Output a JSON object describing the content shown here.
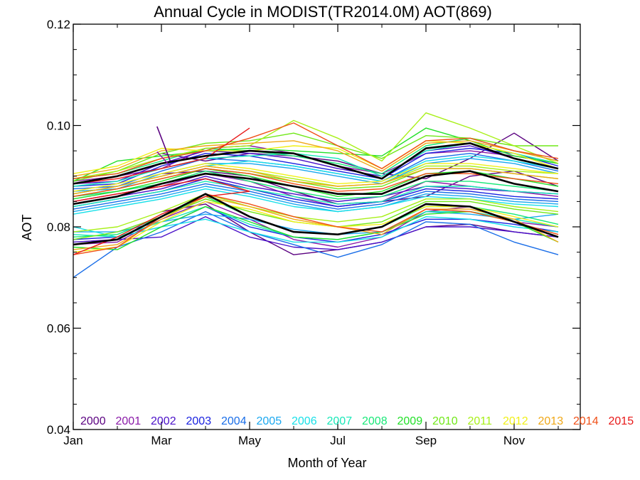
{
  "chart_data": {
    "type": "line",
    "title": "Annual Cycle in MODIST(TR2014.0M) AOT(869)",
    "xlabel": "Month of Year",
    "ylabel": "AOT",
    "xlim": [
      1,
      12.5
    ],
    "ylim": [
      0.04,
      0.12
    ],
    "x_ticks": [
      {
        "x": 1,
        "label": "Jan"
      },
      {
        "x": 3,
        "label": "Mar"
      },
      {
        "x": 5,
        "label": "May"
      },
      {
        "x": 7,
        "label": "Jul"
      },
      {
        "x": 9,
        "label": "Sep"
      },
      {
        "x": 11,
        "label": "Nov"
      }
    ],
    "y_ticks": [
      {
        "y": 0.04,
        "label": "0.04"
      },
      {
        "y": 0.06,
        "label": "0.06"
      },
      {
        "y": 0.08,
        "label": "0.08"
      },
      {
        "y": 0.1,
        "label": "0.10"
      },
      {
        "y": 0.12,
        "label": "0.12"
      }
    ],
    "legend_position": "bottom",
    "grid": false,
    "series": [
      {
        "name": "2000",
        "color": "#5a0080",
        "bands": [
          [
            null,
            null,
            0.0945,
            0.093,
            0.0945,
            0.094,
            0.093,
            0.0905,
            0.0895,
            0.0935,
            0.0985,
            0.093
          ],
          [
            null,
            null,
            0.0905,
            0.091,
            0.09,
            0.087,
            0.0845,
            0.085,
            0.086,
            0.09,
            0.091,
            0.088
          ],
          [
            null,
            null,
            0.083,
            0.0845,
            0.079,
            0.0745,
            0.0755,
            0.077,
            0.08,
            0.0805,
            0.079,
            0.078
          ]
        ]
      },
      {
        "name": "2001",
        "color": "#8a1aa8",
        "bands": [
          [
            0.089,
            0.09,
            0.0915,
            0.0955,
            0.096,
            0.0945,
            0.092,
            0.0905,
            0.0945,
            0.095,
            0.094,
            0.0925
          ],
          [
            0.085,
            0.0865,
            0.088,
            0.0905,
            0.089,
            0.086,
            0.084,
            0.085,
            0.089,
            0.088,
            0.087,
            0.086
          ],
          [
            0.0765,
            0.077,
            0.0815,
            0.085,
            0.0815,
            0.0775,
            0.076,
            0.078,
            0.083,
            0.084,
            0.081,
            0.08
          ]
        ]
      },
      {
        "name": "2002",
        "color": "#4a10c8",
        "bands": [
          [
            0.0885,
            0.089,
            0.0925,
            0.095,
            0.0945,
            0.0935,
            0.0915,
            0.09,
            0.095,
            0.096,
            0.0935,
            0.0915
          ],
          [
            0.0845,
            0.086,
            0.0875,
            0.09,
            0.088,
            0.0865,
            0.085,
            0.086,
            0.088,
            0.0875,
            0.087,
            0.0865
          ],
          [
            0.077,
            0.0775,
            0.078,
            0.082,
            0.078,
            0.076,
            0.0755,
            0.077,
            0.08,
            0.08,
            0.079,
            0.078
          ]
        ]
      },
      {
        "name": "2003",
        "color": "#1a22e0",
        "bands": [
          [
            0.088,
            0.0885,
            0.092,
            0.0945,
            0.094,
            0.0925,
            0.091,
            0.0895,
            0.0945,
            0.0955,
            0.0945,
            0.092
          ],
          [
            0.084,
            0.0855,
            0.087,
            0.0895,
            0.0875,
            0.0855,
            0.084,
            0.085,
            0.0875,
            0.087,
            0.086,
            0.0855
          ],
          [
            0.0775,
            0.078,
            0.08,
            0.084,
            0.08,
            0.078,
            0.077,
            0.0785,
            0.0815,
            0.0815,
            0.0805,
            0.079
          ]
        ]
      },
      {
        "name": "2004",
        "color": "#1a6ee8",
        "bands": [
          [
            0.0875,
            0.088,
            0.091,
            0.0935,
            0.093,
            0.092,
            0.0905,
            0.089,
            0.0935,
            0.0945,
            0.093,
            0.091
          ],
          [
            0.0835,
            0.085,
            0.0865,
            0.0885,
            0.087,
            0.085,
            0.0835,
            0.0845,
            0.087,
            0.0865,
            0.0855,
            0.085
          ],
          [
            0.07,
            0.076,
            0.079,
            0.083,
            0.079,
            0.0765,
            0.074,
            0.0765,
            0.081,
            0.0805,
            0.077,
            0.0745
          ]
        ]
      },
      {
        "name": "2005",
        "color": "#1aa8f0",
        "bands": [
          [
            0.087,
            0.0875,
            0.0905,
            0.0925,
            0.0925,
            0.0915,
            0.09,
            0.0885,
            0.0925,
            0.0935,
            0.0925,
            0.0905
          ],
          [
            0.083,
            0.0845,
            0.086,
            0.088,
            0.0865,
            0.0845,
            0.083,
            0.084,
            0.0865,
            0.086,
            0.085,
            0.0845
          ],
          [
            0.079,
            0.079,
            0.081,
            0.0825,
            0.0815,
            0.0795,
            0.0785,
            0.079,
            0.083,
            0.0825,
            0.0815,
            0.0825
          ]
        ]
      },
      {
        "name": "2006",
        "color": "#18e0e8",
        "bands": [
          [
            0.0865,
            0.088,
            0.09,
            0.092,
            0.093,
            0.092,
            0.0905,
            0.089,
            0.093,
            0.094,
            0.093,
            0.0915
          ],
          [
            0.0825,
            0.084,
            0.0855,
            0.0875,
            0.086,
            0.084,
            0.083,
            0.084,
            0.086,
            0.0855,
            0.0845,
            0.084
          ],
          [
            0.08,
            0.078,
            0.08,
            0.0815,
            0.079,
            0.077,
            0.077,
            0.078,
            0.082,
            0.0815,
            0.08,
            0.079
          ]
        ]
      },
      {
        "name": "2007",
        "color": "#18e8b8",
        "bands": [
          [
            0.088,
            0.089,
            0.0915,
            0.0935,
            0.094,
            0.0945,
            0.0935,
            0.09,
            0.095,
            0.0965,
            0.0945,
            0.0925
          ],
          [
            0.084,
            0.0855,
            0.087,
            0.089,
            0.0875,
            0.086,
            0.0845,
            0.085,
            0.088,
            0.088,
            0.087,
            0.0865
          ],
          [
            0.0785,
            0.078,
            0.081,
            0.084,
            0.0805,
            0.078,
            0.0775,
            0.079,
            0.083,
            0.083,
            0.0815,
            0.08
          ]
        ]
      },
      {
        "name": "2008",
        "color": "#18e878",
        "bands": [
          [
            0.0895,
            0.0905,
            0.093,
            0.0955,
            0.095,
            0.094,
            0.0925,
            0.0905,
            0.096,
            0.0975,
            0.095,
            0.093
          ],
          [
            0.086,
            0.087,
            0.0885,
            0.091,
            0.089,
            0.087,
            0.0855,
            0.086,
            0.089,
            0.089,
            0.088,
            0.087
          ],
          [
            0.078,
            0.0785,
            0.082,
            0.086,
            0.082,
            0.079,
            0.0785,
            0.08,
            0.084,
            0.084,
            0.0825,
            0.0805
          ]
        ]
      },
      {
        "name": "2009",
        "color": "#22e028",
        "bands": [
          [
            0.089,
            0.093,
            0.094,
            0.095,
            0.0955,
            0.095,
            0.0945,
            0.094,
            0.0995,
            0.097,
            0.094,
            0.0925
          ],
          [
            0.0855,
            0.087,
            0.089,
            0.0915,
            0.09,
            0.088,
            0.086,
            0.087,
            0.0905,
            0.091,
            0.0895,
            0.088
          ],
          [
            0.076,
            0.0755,
            0.08,
            0.084,
            0.081,
            0.078,
            0.0775,
            0.079,
            0.0825,
            0.083,
            0.081,
            0.077
          ]
        ]
      },
      {
        "name": "2010",
        "color": "#70e818",
        "bands": [
          [
            0.089,
            0.091,
            0.0945,
            0.0965,
            0.097,
            0.0985,
            0.096,
            0.0935,
            0.098,
            0.0975,
            0.096,
            0.096
          ],
          [
            0.086,
            0.0875,
            0.0895,
            0.0915,
            0.0905,
            0.089,
            0.0875,
            0.088,
            0.0915,
            0.0915,
            0.0905,
            0.0895
          ],
          [
            0.0775,
            0.079,
            0.082,
            0.0855,
            0.083,
            0.081,
            0.08,
            0.081,
            0.085,
            0.085,
            0.0835,
            0.0825
          ]
        ]
      },
      {
        "name": "2011",
        "color": "#a8f018",
        "bands": [
          [
            0.0895,
            0.091,
            0.0935,
            0.0955,
            0.096,
            0.101,
            0.0975,
            0.093,
            0.1025,
            0.0995,
            0.096,
            0.0925
          ],
          [
            0.0865,
            0.088,
            0.09,
            0.092,
            0.091,
            0.0895,
            0.088,
            0.0885,
            0.092,
            0.092,
            0.091,
            0.0905
          ],
          [
            0.079,
            0.08,
            0.083,
            0.0865,
            0.084,
            0.082,
            0.081,
            0.082,
            0.0855,
            0.0855,
            0.084,
            0.083
          ]
        ]
      },
      {
        "name": "2012",
        "color": "#f0f018",
        "bands": [
          [
            0.0905,
            0.092,
            0.0955,
            0.095,
            0.095,
            0.096,
            0.0955,
            0.0915,
            0.097,
            0.0965,
            0.0945,
            0.0915
          ],
          [
            0.087,
            0.0885,
            0.0905,
            0.0925,
            0.0915,
            0.09,
            0.0885,
            0.089,
            0.0925,
            0.0925,
            0.0915,
            0.0905
          ],
          [
            0.075,
            0.076,
            0.081,
            0.085,
            0.0835,
            0.081,
            0.08,
            0.0805,
            0.084,
            0.084,
            0.082,
            0.08
          ]
        ]
      },
      {
        "name": "2013",
        "color": "#f0a818",
        "bands": [
          [
            0.09,
            0.0915,
            0.095,
            0.096,
            0.0965,
            0.097,
            0.095,
            0.091,
            0.0965,
            0.097,
            0.095,
            0.093
          ],
          [
            0.0865,
            0.088,
            0.09,
            0.092,
            0.091,
            0.089,
            0.088,
            0.0885,
            0.0915,
            0.0915,
            0.0905,
            0.0895
          ],
          [
            0.0755,
            0.0765,
            0.0815,
            0.086,
            0.084,
            0.0815,
            0.08,
            0.0785,
            0.0835,
            0.0835,
            0.0815,
            0.077
          ]
        ]
      },
      {
        "name": "2014",
        "color": "#f05018",
        "bands": [
          [
            0.0895,
            0.0905,
            0.0935,
            0.095,
            0.0975,
            0.1005,
            0.096,
            0.0915,
            0.097,
            0.0975,
            0.095,
            0.0935
          ],
          [
            0.086,
            0.0875,
            0.0895,
            0.0915,
            0.0905,
            0.0885,
            0.087,
            0.0875,
            0.0905,
            0.0905,
            0.0895,
            0.0885
          ],
          [
            0.0745,
            0.076,
            0.082,
            0.0865,
            0.0845,
            0.082,
            0.08,
            0.079,
            0.0835,
            0.083,
            0.081,
            0.0785
          ]
        ]
      },
      {
        "name": "2015",
        "color": "#e81818",
        "bands": [
          [
            0.0885,
            0.0895,
            0.0915,
            0.0935,
            0.0995
          ],
          [
            0.085,
            0.0865,
            0.088,
            0.0895,
            0.087
          ],
          [
            0.0745,
            0.078,
            0.0825,
            0.086,
            0.087
          ]
        ]
      },
      {
        "name": "",
        "color": "#000000",
        "bands": [
          [
            0.0885,
            0.09,
            0.0925,
            0.094,
            0.095,
            0.0945,
            0.092,
            0.0895,
            0.0955,
            0.0965,
            0.0935,
            0.0915
          ],
          [
            0.0845,
            0.086,
            0.0885,
            0.0905,
            0.0895,
            0.088,
            0.0865,
            0.0865,
            0.09,
            0.091,
            0.0885,
            0.087
          ],
          [
            0.0765,
            0.0775,
            0.082,
            0.0865,
            0.082,
            0.079,
            0.0785,
            0.08,
            0.0845,
            0.084,
            0.081,
            0.078
          ]
        ]
      }
    ],
    "extra_points": [
      {
        "series": "2000",
        "points": [
          [
            2.9,
            0.0998
          ],
          [
            3.2,
            0.093
          ]
        ]
      },
      {
        "series": "2001",
        "points": [
          [
            2.9,
            0.0948
          ],
          [
            3.2,
            0.092
          ]
        ]
      }
    ]
  }
}
